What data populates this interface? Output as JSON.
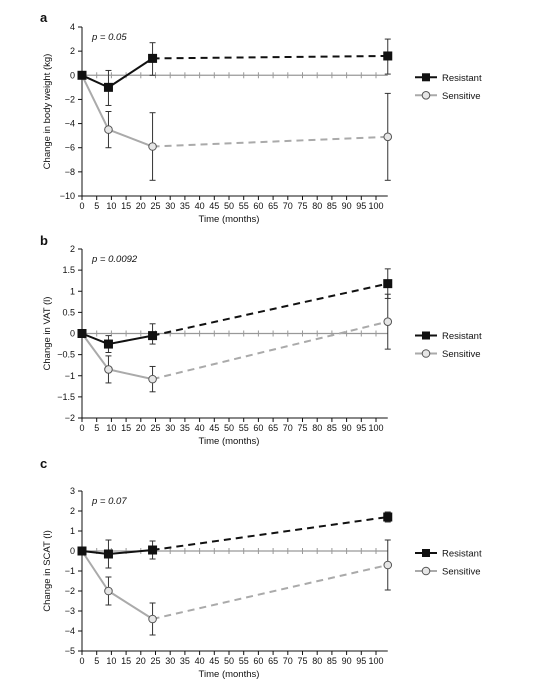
{
  "chart_data": [
    {
      "type": "line",
      "panel_label": "a",
      "annotation": "p = 0.05",
      "xlabel": "Time (months)",
      "ylabel": "Change in body weight (kg)",
      "x_ticks": [
        0,
        5,
        10,
        15,
        20,
        25,
        30,
        35,
        40,
        45,
        50,
        55,
        60,
        65,
        70,
        75,
        80,
        85,
        90,
        95,
        100
      ],
      "y_ticks": [
        -10,
        -8,
        -6,
        -4,
        -2,
        0,
        2,
        4
      ],
      "xlim": [
        0,
        104
      ],
      "ylim": [
        -10,
        4
      ],
      "legend_position": "right",
      "series": [
        {
          "name": "Resistant",
          "color": "#111111",
          "marker": "square",
          "x": [
            0,
            9,
            24,
            104
          ],
          "y": [
            0,
            -1,
            1.4,
            1.6
          ],
          "err_low": [
            0,
            1.5,
            1.4,
            1.5
          ],
          "err_high": [
            0,
            1.4,
            1.3,
            1.4
          ]
        },
        {
          "name": "Sensitive",
          "color": "#aaaaaa",
          "marker": "circle",
          "x": [
            0,
            9,
            24,
            104
          ],
          "y": [
            0,
            -4.5,
            -5.9,
            -5.1
          ],
          "err_low": [
            0,
            1.5,
            2.8,
            3.6
          ],
          "err_high": [
            0,
            1.5,
            2.8,
            3.6
          ]
        }
      ]
    },
    {
      "type": "line",
      "panel_label": "b",
      "annotation": "p = 0.0092",
      "xlabel": "Time (months)",
      "ylabel": "Change in VAT (l)",
      "x_ticks": [
        0,
        5,
        10,
        15,
        20,
        25,
        30,
        35,
        40,
        45,
        50,
        55,
        60,
        65,
        70,
        75,
        80,
        85,
        90,
        95,
        100
      ],
      "y_ticks": [
        -2,
        -1.5,
        -1,
        -0.5,
        0,
        0.5,
        1,
        1.5,
        2
      ],
      "xlim": [
        0,
        104
      ],
      "ylim": [
        -2,
        2
      ],
      "legend_position": "right",
      "series": [
        {
          "name": "Resistant",
          "color": "#111111",
          "marker": "square",
          "x": [
            0,
            9,
            24,
            104
          ],
          "y": [
            0,
            -0.25,
            -0.05,
            1.18
          ],
          "err_low": [
            0,
            0.2,
            0.2,
            0.35
          ],
          "err_high": [
            0,
            0.2,
            0.28,
            0.35
          ]
        },
        {
          "name": "Sensitive",
          "color": "#aaaaaa",
          "marker": "circle",
          "x": [
            0,
            9,
            24,
            104
          ],
          "y": [
            0,
            -0.85,
            -1.08,
            0.28
          ],
          "err_low": [
            0,
            0.32,
            0.3,
            0.65
          ],
          "err_high": [
            0,
            0.32,
            0.3,
            0.65
          ]
        }
      ]
    },
    {
      "type": "line",
      "panel_label": "c",
      "annotation": "p = 0.07",
      "xlabel": "Time (months)",
      "ylabel": "Change in SCAT (l)",
      "x_ticks": [
        0,
        5,
        10,
        15,
        20,
        25,
        30,
        35,
        40,
        45,
        50,
        55,
        60,
        65,
        70,
        75,
        80,
        85,
        90,
        95,
        100
      ],
      "y_ticks": [
        -5,
        -4,
        -3,
        -2,
        -1,
        0,
        1,
        2,
        3
      ],
      "xlim": [
        0,
        104
      ],
      "ylim": [
        -5,
        3
      ],
      "legend_position": "right",
      "series": [
        {
          "name": "Resistant",
          "color": "#111111",
          "marker": "square",
          "x": [
            0,
            9,
            24,
            104
          ],
          "y": [
            0,
            -0.15,
            0.05,
            1.7
          ],
          "err_low": [
            0,
            0.7,
            0.45,
            0.25
          ],
          "err_high": [
            0,
            0.7,
            0.45,
            0.25
          ]
        },
        {
          "name": "Sensitive",
          "color": "#aaaaaa",
          "marker": "circle",
          "x": [
            0,
            9,
            24,
            104
          ],
          "y": [
            0,
            -2,
            -3.4,
            -0.7
          ],
          "err_low": [
            0,
            0.7,
            0.8,
            1.25
          ],
          "err_high": [
            0,
            0.7,
            0.8,
            1.25
          ]
        }
      ]
    }
  ]
}
